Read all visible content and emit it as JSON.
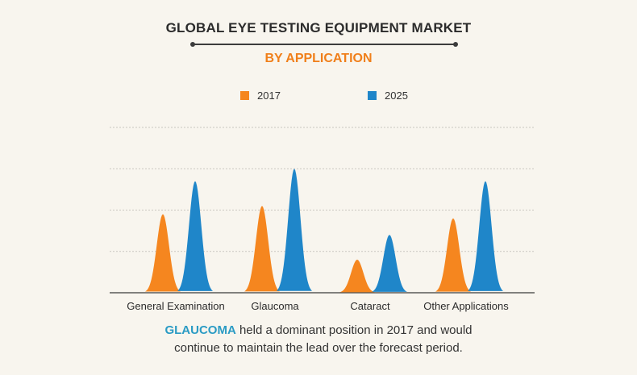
{
  "title": "GLOBAL EYE TESTING EQUIPMENT MARKET",
  "subtitle": "BY APPLICATION",
  "caption": {
    "highlight": "GLAUCOMA",
    "line1_rest": " held a dominant position in 2017 and would",
    "line2": "continue to maintain the lead over the forecast period."
  },
  "colors": {
    "series_2017": "#f5861f",
    "series_2025": "#1f86c9",
    "highlight": "#2a9bc4",
    "subtitle": "#f07f1a"
  },
  "chart_data": {
    "type": "area",
    "categories": [
      "General Examination",
      "Glaucoma",
      "Cataract",
      "Other Applications"
    ],
    "series": [
      {
        "name": "2017",
        "values": [
          1.9,
          2.1,
          0.8,
          1.8
        ]
      },
      {
        "name": "2025",
        "values": [
          2.7,
          3.0,
          1.4,
          2.7
        ]
      }
    ],
    "ylim": [
      0,
      4
    ],
    "grid": true,
    "legend_position": "top-center"
  }
}
